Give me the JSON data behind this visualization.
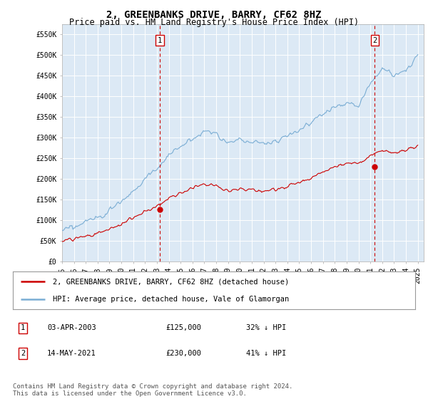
{
  "title": "2, GREENBANKS DRIVE, BARRY, CF62 8HZ",
  "subtitle": "Price paid vs. HM Land Registry's House Price Index (HPI)",
  "ylim": [
    0,
    575000
  ],
  "xlim_start": 1995.0,
  "xlim_end": 2025.5,
  "yticks": [
    0,
    50000,
    100000,
    150000,
    200000,
    250000,
    300000,
    350000,
    400000,
    450000,
    500000,
    550000
  ],
  "ytick_labels": [
    "£0",
    "£50K",
    "£100K",
    "£150K",
    "£200K",
    "£250K",
    "£300K",
    "£350K",
    "£400K",
    "£450K",
    "£500K",
    "£550K"
  ],
  "xticks": [
    1995,
    1996,
    1997,
    1998,
    1999,
    2000,
    2001,
    2002,
    2003,
    2004,
    2005,
    2006,
    2007,
    2008,
    2009,
    2010,
    2011,
    2012,
    2013,
    2014,
    2015,
    2016,
    2017,
    2018,
    2019,
    2020,
    2021,
    2022,
    2023,
    2024,
    2025
  ],
  "plot_bg_color": "#dce9f5",
  "fig_bg_color": "#ffffff",
  "grid_color": "#ffffff",
  "red_line_color": "#cc0000",
  "blue_line_color": "#7aadd4",
  "vline_color": "#cc0000",
  "sale1_x": 2003.25,
  "sale1_y": 125000,
  "sale2_x": 2021.37,
  "sale2_y": 230000,
  "legend_entries": [
    "2, GREENBANKS DRIVE, BARRY, CF62 8HZ (detached house)",
    "HPI: Average price, detached house, Vale of Glamorgan"
  ],
  "legend_colors": [
    "#cc0000",
    "#7aadd4"
  ],
  "table_data": [
    [
      "1",
      "03-APR-2003",
      "£125,000",
      "32% ↓ HPI"
    ],
    [
      "2",
      "14-MAY-2021",
      "£230,000",
      "41% ↓ HPI"
    ]
  ],
  "footnote": "Contains HM Land Registry data © Crown copyright and database right 2024.\nThis data is licensed under the Open Government Licence v3.0.",
  "title_fontsize": 10,
  "subtitle_fontsize": 8.5,
  "tick_fontsize": 7,
  "legend_fontsize": 7.5,
  "table_fontsize": 7.5,
  "footnote_fontsize": 6.5
}
